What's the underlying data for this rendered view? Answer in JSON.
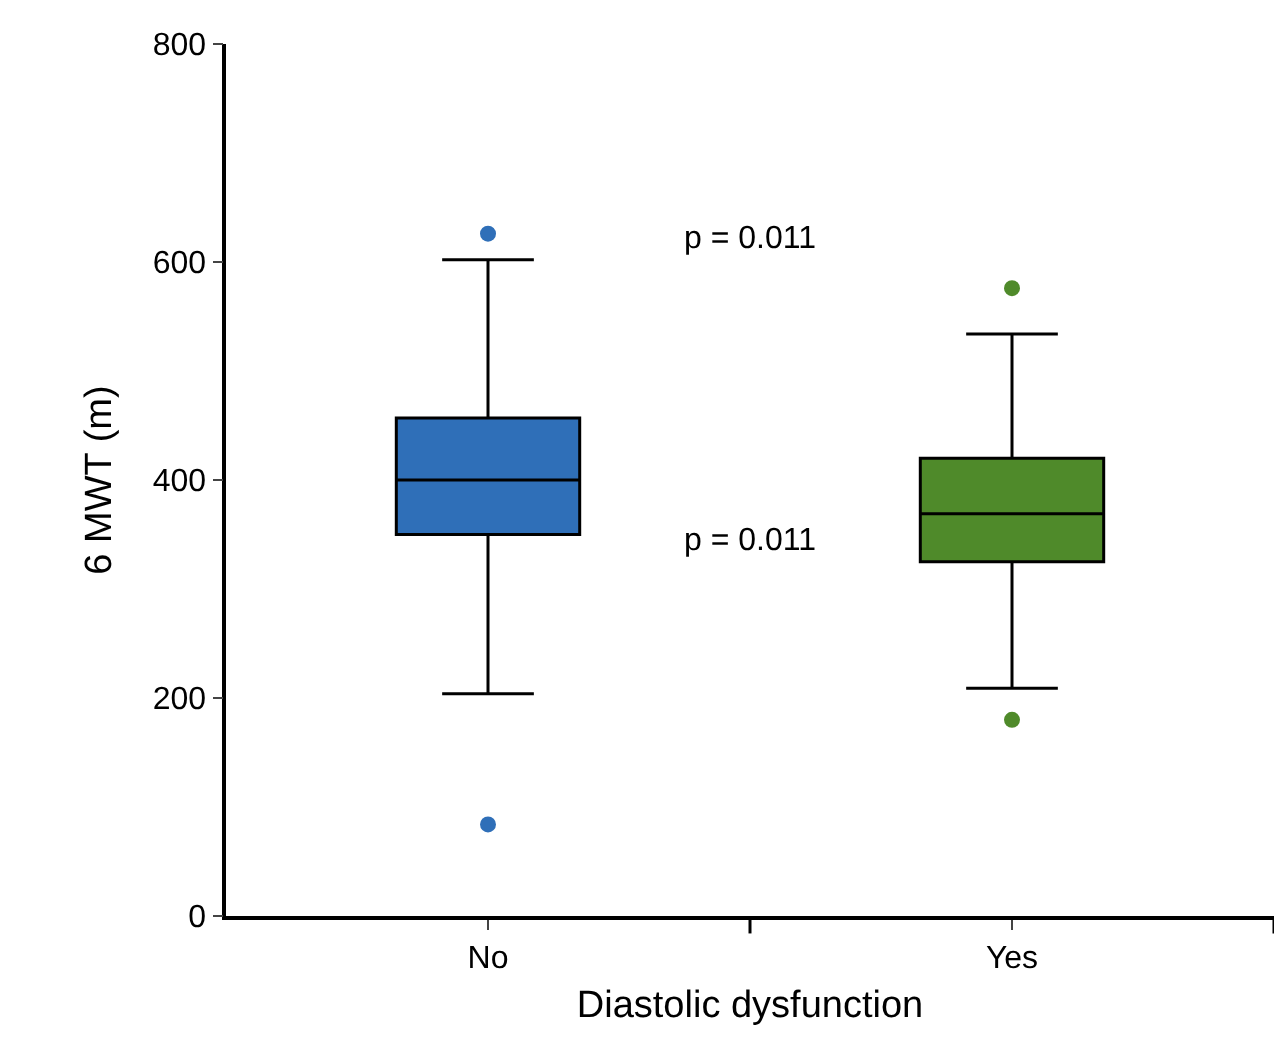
{
  "chart_data": {
    "type": "box",
    "xlabel": "Diastolic dysfunction",
    "ylabel": "6 MWT (m)",
    "categories": [
      "No",
      "Yes"
    ],
    "colors": [
      "#2f6fb8",
      "#4f8a2a"
    ],
    "boxes": [
      {
        "low": 204,
        "q1": 350,
        "median": 400,
        "q3": 457,
        "high": 602,
        "outliers": [
          626,
          84
        ]
      },
      {
        "low": 209,
        "q1": 325,
        "median": 369,
        "q3": 420,
        "high": 534,
        "outliers": [
          576,
          180
        ]
      }
    ],
    "ylim": [
      0,
      800
    ],
    "yticks": [
      0,
      200,
      400,
      600,
      800
    ],
    "annotations": [
      "p = 0.011",
      "p = 0.011"
    ]
  }
}
